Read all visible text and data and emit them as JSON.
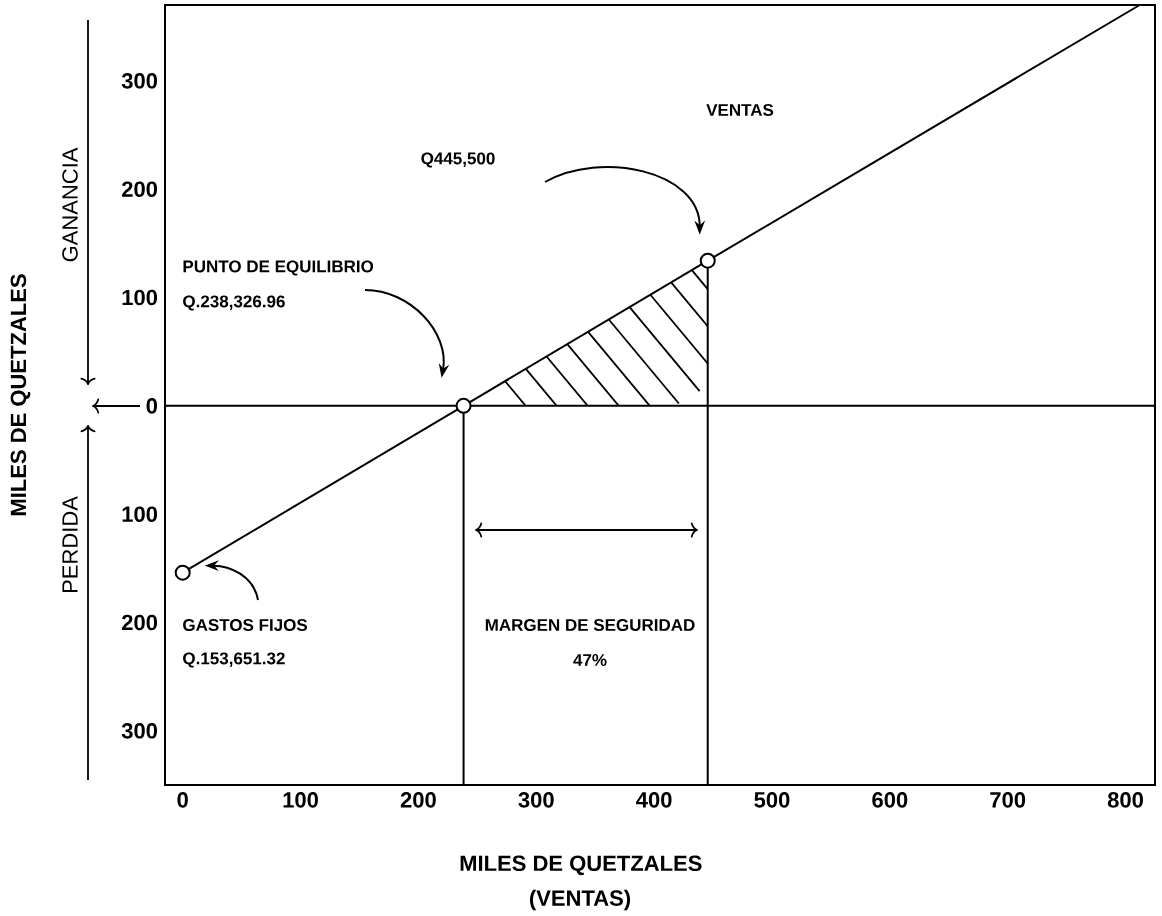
{
  "chart_data": {
    "type": "line",
    "xlabel": "MILES DE QUETZALES",
    "ylabel": "MILES DE QUETZALES",
    "xlim": [
      -15,
      825
    ],
    "ylim": [
      -350,
      370
    ],
    "xticks": [
      0,
      100,
      200,
      300,
      400,
      500,
      600,
      700,
      800
    ],
    "yticks": [
      {
        "value": -300,
        "label": "300"
      },
      {
        "value": -200,
        "label": "200"
      },
      {
        "value": -100,
        "label": "100"
      },
      0,
      100,
      200,
      300
    ],
    "series": [
      {
        "color": "#000000",
        "x": [
          0,
          238.327,
          445.5,
          812
        ],
        "values": [
          -154,
          0,
          134,
          370
        ],
        "marker": "none"
      },
      {
        "type": "scatter",
        "color": "#000000",
        "x": [
          0,
          238.327,
          445.5
        ],
        "values": [
          -154,
          0,
          134
        ],
        "marker": "circle"
      }
    ],
    "ref_lines": [
      {
        "axis": "y",
        "value": 0
      },
      {
        "axis": "x",
        "value": 238.327
      },
      {
        "axis": "x",
        "value": 445.5
      }
    ],
    "annotations": [
      "PUNTO DE EQUILIBRIO",
      "Q.238,326.96",
      "VENTAS",
      "Q445,500",
      "GASTOS FIJOS",
      "Q.153,651.32",
      "MARGEN DE SEGURIDAD",
      "47%",
      "GANANCIA",
      "PERDIDA",
      "(VENTAS)"
    ]
  }
}
